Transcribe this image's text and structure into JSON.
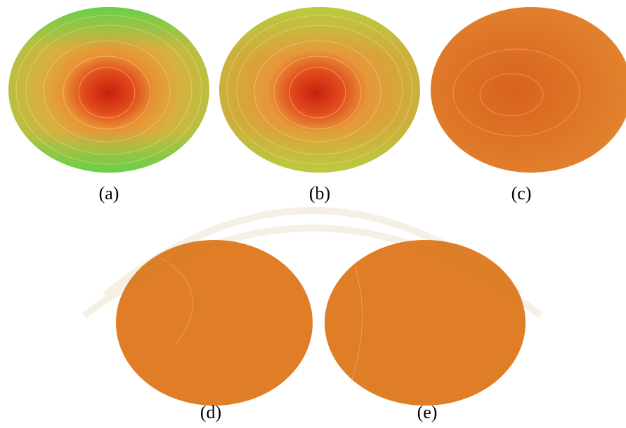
{
  "figure": {
    "labels": [
      "(a)",
      "(b)",
      "(c)",
      "(d)",
      "(e)"
    ]
  }
}
